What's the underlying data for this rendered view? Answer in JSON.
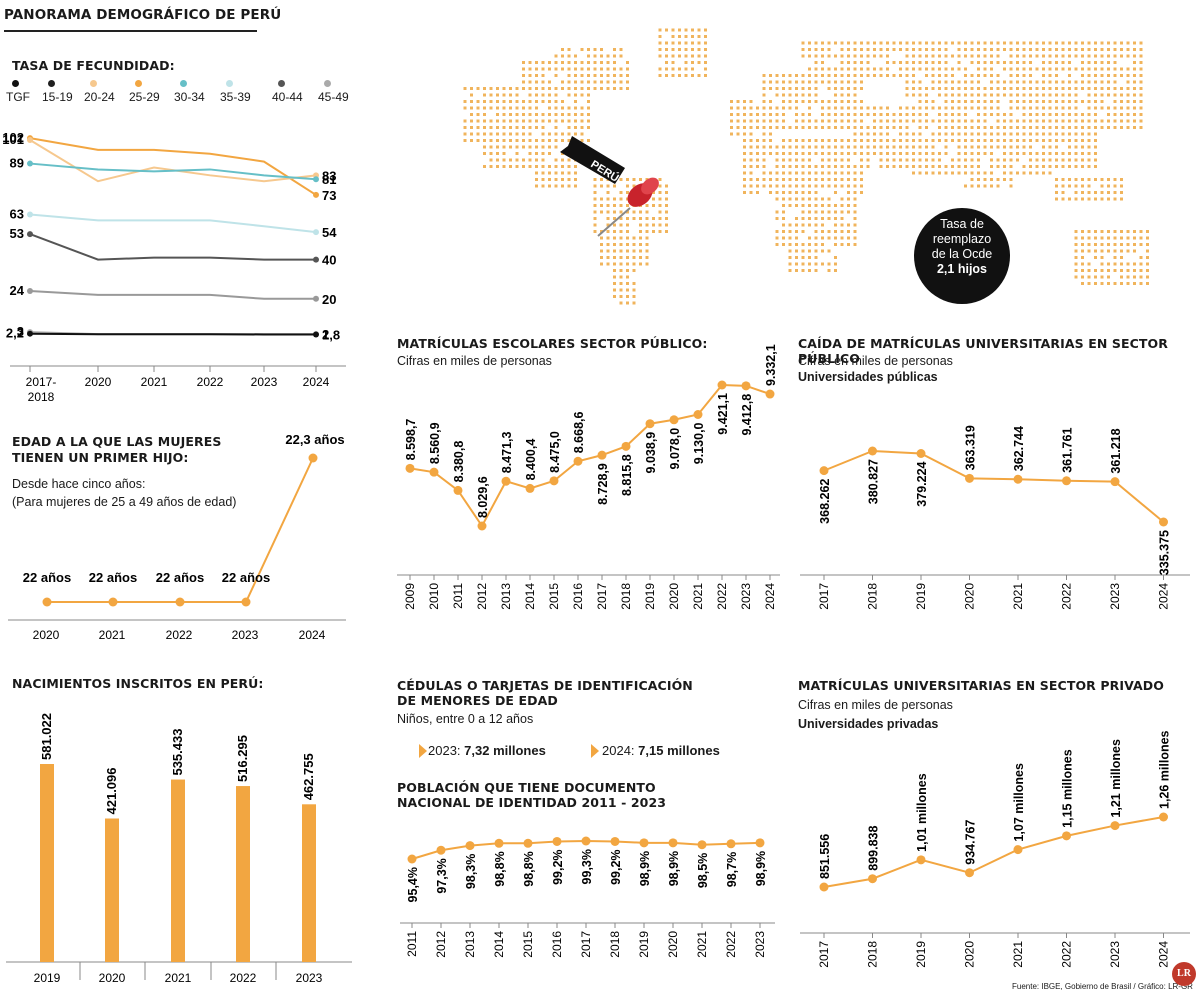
{
  "header": {
    "title": "PANORAMA DEMOGRÁFICO DE PERÚ"
  },
  "colors": {
    "accent": "#F2A641",
    "light_orange": "#F6C88E",
    "cyan": "#66BFC7",
    "light_cyan": "#BFE3E8",
    "dark_gray": "#555555",
    "gray": "#999999",
    "black": "#111111"
  },
  "fecundidad": {
    "title": "TASA DE FECUNDIDAD:",
    "legend": [
      {
        "label": "TGF",
        "color": "#111111",
        "icon": "dot-black"
      },
      {
        "label": "15-19",
        "color": "#1f1f1f",
        "icon": "dot-dark"
      },
      {
        "label": "20-24",
        "color": "#F6C88E",
        "icon": "dot-light-orange"
      },
      {
        "label": "25-29",
        "color": "#F2A641",
        "icon": "dot-orange"
      },
      {
        "label": "30-34",
        "color": "#66BFC7",
        "icon": "dot-cyan"
      },
      {
        "label": "35-39",
        "color": "#BFE3E8",
        "icon": "dot-light-cyan"
      },
      {
        "label": "40-44",
        "color": "#555555",
        "icon": "dot-gray-dark"
      },
      {
        "label": "45-49",
        "color": "#AAAAAA",
        "icon": "dot-gray"
      }
    ]
  },
  "chart_data": [
    {
      "type": "line",
      "title": "TASA DE FECUNDIDAD:",
      "x": [
        "2017-2018",
        "2020",
        "2021",
        "2022",
        "2023",
        "2024"
      ],
      "series": [
        {
          "name": "25-29",
          "color": "#F2A641",
          "values": [
            102,
            96,
            96,
            94,
            90,
            73
          ],
          "start_label": "102",
          "end_label": "73"
        },
        {
          "name": "20-24",
          "color": "#F6C88E",
          "values": [
            101,
            80,
            87,
            83,
            80,
            83
          ],
          "start_label": "101",
          "end_label": "83"
        },
        {
          "name": "30-34",
          "color": "#66BFC7",
          "values": [
            89,
            86,
            85,
            86,
            83,
            81
          ],
          "start_label": "89",
          "end_label": "81"
        },
        {
          "name": "35-39",
          "color": "#BFE3E8",
          "values": [
            63,
            60,
            60,
            60,
            57,
            54
          ],
          "start_label": "63",
          "end_label": "54"
        },
        {
          "name": "40-44",
          "color": "#555555",
          "values": [
            53,
            40,
            41,
            41,
            40,
            40
          ],
          "start_label": "53",
          "end_label": "40"
        },
        {
          "name": "45-49",
          "color": "#999999",
          "values": [
            24,
            22,
            22,
            22,
            20,
            20
          ],
          "start_label": "24",
          "end_label": "20"
        },
        {
          "name": "15-19",
          "color": "#AAAAAA",
          "values": [
            3,
            2,
            2,
            2,
            2,
            2
          ],
          "start_label": "3",
          "end_label": "2"
        },
        {
          "name": "TGF",
          "color": "#111111",
          "values": [
            2.2,
            1.9,
            1.9,
            1.9,
            1.8,
            1.8
          ],
          "start_label": "2,2",
          "end_label": "1,8"
        }
      ]
    },
    {
      "type": "line",
      "title": "EDAD A LA QUE LAS MUJERES TIENEN UN PRIMER HIJO:",
      "x": [
        "2020",
        "2021",
        "2022",
        "2023",
        "2024"
      ],
      "values": [
        22,
        22,
        22,
        22,
        22.3
      ],
      "labels": [
        "22 años",
        "22 años",
        "22 años",
        "22 años",
        "22,3 años"
      ]
    },
    {
      "type": "bar",
      "title": "NACIMIENTOS INSCRITOS EN PERÚ:",
      "categories": [
        "2019",
        "2020",
        "2021",
        "2022",
        "2023"
      ],
      "values": [
        581022,
        421096,
        535433,
        516295,
        462755
      ],
      "labels": [
        "581.022",
        "421.096",
        "535.433",
        "516.295",
        "462.755"
      ]
    },
    {
      "type": "line",
      "title": "MATRÍCULAS ESCOLARES SECTOR PÚBLICO:",
      "subtitle": "Cifras en miles de personas",
      "x": [
        "2009",
        "2010",
        "2011",
        "2012",
        "2013",
        "2014",
        "2015",
        "2016",
        "2017",
        "2018",
        "2019",
        "2020",
        "2021",
        "2022",
        "2023",
        "2024"
      ],
      "values": [
        8598.7,
        8560.9,
        8380.8,
        8029.6,
        8471.3,
        8400.4,
        8475.0,
        8668.6,
        8728.9,
        8815.8,
        9038.9,
        9078.0,
        9130.0,
        9421.1,
        9412.8,
        9332.1
      ],
      "labels": [
        "8.598,7",
        "8.560,9",
        "8.380,8",
        "8.029,6",
        "8.471,3",
        "8.400,4",
        "8.475,0",
        "8.668,6",
        "8.728,9",
        "8.815,8",
        "9.038,9",
        "9.078,0",
        "9.130,0",
        "9.421,1",
        "9.412,8",
        "9.332,1"
      ]
    },
    {
      "type": "line",
      "title": "CAÍDA DE MATRÍCULAS UNIVERSITARIAS EN SECTOR PÚBLICO",
      "subtitle": "Cifras en miles de personas",
      "x": [
        "2017",
        "2018",
        "2019",
        "2020",
        "2021",
        "2022",
        "2023",
        "2024"
      ],
      "values": [
        368262,
        380827,
        379224,
        363319,
        362744,
        361761,
        361218,
        335375
      ],
      "labels": [
        "368.262",
        "380.827",
        "379.224",
        "363.319",
        "362.744",
        "361.761",
        "361.218",
        "335.375"
      ]
    },
    {
      "type": "line",
      "title": "POBLACIÓN QUE TIENE DOCUMENTO NACIONAL DE IDENTIDAD 2011 - 2023",
      "x": [
        "2011",
        "2012",
        "2013",
        "2014",
        "2015",
        "2016",
        "2017",
        "2018",
        "2019",
        "2020",
        "2021",
        "2022",
        "2023"
      ],
      "values": [
        95.4,
        97.3,
        98.3,
        98.8,
        98.8,
        99.2,
        99.3,
        99.2,
        98.9,
        98.9,
        98.5,
        98.7,
        98.9
      ],
      "labels": [
        "95,4%",
        "97,3%",
        "98,3%",
        "98,8%",
        "98,8%",
        "99,2%",
        "99,3%",
        "99,2%",
        "98,9%",
        "98,9%",
        "98,5%",
        "98,7%",
        "98,9%"
      ]
    },
    {
      "type": "line",
      "title": "MATRÍCULAS UNIVERSITARIAS EN SECTOR PRIVADO",
      "subtitle": "Cifras en miles de personas",
      "x": [
        "2017",
        "2018",
        "2019",
        "2020",
        "2021",
        "2022",
        "2023",
        "2024"
      ],
      "values": [
        851556,
        899838,
        1010000,
        934767,
        1070000,
        1150000,
        1210000,
        1260000
      ],
      "labels": [
        "851.556",
        "899.838",
        "1,01 millones",
        "934.767",
        "1,07 millones",
        "1,15 millones",
        "1,21 millones",
        "1,26 millones"
      ]
    }
  ],
  "edad": {
    "title_line1": "EDAD A LA QUE LAS MUJERES",
    "title_line2": "TIENEN UN PRIMER HIJO:",
    "sub1": "Desde hace cinco años:",
    "sub2": "(Para mujeres de 25 a 49 años de edad)"
  },
  "nacimientos": {
    "title": "NACIMIENTOS INSCRITOS EN PERÚ:"
  },
  "map": {
    "pin_label": "PERÚ",
    "badge_line1": "Tasa de",
    "badge_line2": "reemplazo",
    "badge_line3": "de la Ocde",
    "badge_line4": "2,1 hijos"
  },
  "escolares": {
    "title": "MATRÍCULAS ESCOLARES SECTOR PÚBLICO:",
    "subtitle": "Cifras en miles de personas"
  },
  "univ_publica": {
    "title": "CAÍDA DE MATRÍCULAS UNIVERSITARIAS EN SECTOR PÚBLICO",
    "subtitle": "Cifras en miles de personas",
    "subtitle2": "Universidades públicas"
  },
  "cedulas": {
    "title_line1": "CÉDULAS O TARJETAS DE IDENTIFICACIÓN",
    "title_line2": "DE MENORES DE EDAD",
    "subtitle": "Niños, entre 0 a 12 años",
    "item1_prefix": "2023: ",
    "item1_value": "7,32 millones",
    "item2_prefix": "2024: ",
    "item2_value": "7,15 millones"
  },
  "dni": {
    "title_line1": "POBLACIÓN QUE TIENE DOCUMENTO",
    "title_line2": "NACIONAL DE IDENTIDAD 2011 - 2023"
  },
  "univ_privada": {
    "title": "MATRÍCULAS UNIVERSITARIAS EN SECTOR PRIVADO",
    "subtitle": "Cifras en miles de personas",
    "subtitle2": "Universidades privadas"
  },
  "footer": {
    "source": "Fuente: IBGE, Gobierno de Brasil / Gráfico: LR-GR",
    "logo": "LR"
  }
}
